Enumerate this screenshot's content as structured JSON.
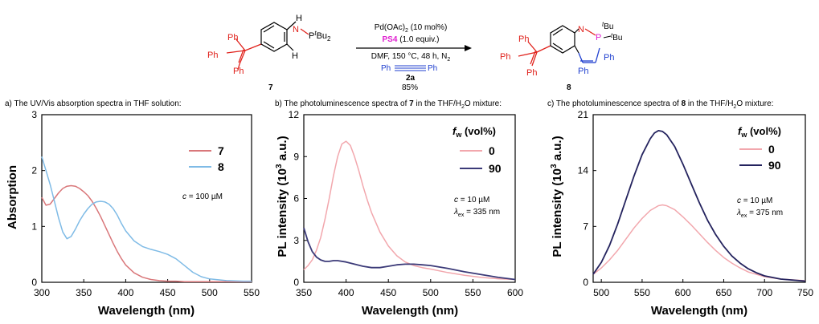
{
  "scheme": {
    "reactant_label": "7",
    "product_label": "8",
    "reactant_atoms": {
      "ph": "Ph",
      "nh": "N",
      "h": "H",
      "ptbu2": "P",
      "tbu_sup": "t",
      "bu2": "Bu",
      "sub2": "2",
      "h_ring": "H"
    },
    "product_atoms": {
      "ph": "Ph",
      "n": "N",
      "p": "P",
      "tbu_sup": "t",
      "bu": "Bu"
    },
    "cond_catalyst": "Pd(OAc)",
    "cond_catalyst_sub": "2",
    "cond_catalyst_rest": " (10 mol%)",
    "cond_ps4": "PS4",
    "cond_ps4_rest": " (1.0 equiv.)",
    "cond_solvent": "DMF, 150 °C, 48 h, N",
    "cond_solvent_sub": "2",
    "alkyne_ph": "Ph",
    "reagent_label": "2a",
    "yield": "85%"
  },
  "chart_data": [
    {
      "type": "line",
      "caption": "a) The UV/Vis absorption spectra in THF solution:",
      "xlabel": "Wavelength (nm)",
      "ylabel": "Absorption",
      "xlim": [
        300,
        550
      ],
      "ylim": [
        0,
        3
      ],
      "xticks": [
        300,
        350,
        400,
        450,
        500,
        550
      ],
      "yticks": [
        0,
        1,
        2,
        3
      ],
      "legend_position": "top-right",
      "annotation": {
        "italic": "c",
        "rest": " = 100 µM"
      },
      "series": [
        {
          "name": "7",
          "color": "#d9777a",
          "x": [
            300,
            305,
            310,
            315,
            320,
            325,
            330,
            335,
            340,
            345,
            350,
            355,
            360,
            365,
            370,
            375,
            380,
            385,
            390,
            395,
            400,
            410,
            420,
            430,
            440,
            450,
            460,
            470,
            480,
            500,
            520,
            550
          ],
          "y": [
            1.52,
            1.38,
            1.4,
            1.5,
            1.6,
            1.68,
            1.72,
            1.73,
            1.72,
            1.68,
            1.62,
            1.55,
            1.45,
            1.32,
            1.18,
            1.02,
            0.86,
            0.7,
            0.55,
            0.42,
            0.31,
            0.17,
            0.09,
            0.05,
            0.03,
            0.02,
            0.02,
            0.01,
            0.01,
            0.01,
            0.01,
            0.01
          ]
        },
        {
          "name": "8",
          "color": "#7fbbe6",
          "x": [
            300,
            305,
            310,
            315,
            320,
            325,
            330,
            335,
            340,
            345,
            350,
            355,
            360,
            365,
            370,
            375,
            380,
            385,
            390,
            395,
            400,
            410,
            420,
            430,
            440,
            450,
            460,
            470,
            480,
            490,
            500,
            520,
            540,
            550
          ],
          "y": [
            2.25,
            2.0,
            1.75,
            1.45,
            1.15,
            0.9,
            0.78,
            0.82,
            0.95,
            1.1,
            1.22,
            1.32,
            1.4,
            1.44,
            1.45,
            1.44,
            1.4,
            1.32,
            1.2,
            1.05,
            0.92,
            0.74,
            0.64,
            0.59,
            0.55,
            0.5,
            0.42,
            0.3,
            0.18,
            0.1,
            0.06,
            0.03,
            0.02,
            0.02
          ]
        }
      ]
    },
    {
      "type": "line",
      "caption_pre": "b) The photoluminescence spectra of ",
      "caption_bold": "7",
      "caption_post": " in the THF/H",
      "caption_sub": "2",
      "caption_end": "O mixture:",
      "xlabel": "Wavelength (nm)",
      "ylabel": "PL intensity (10",
      "ylabel_sup": "3",
      "ylabel_end": " a.u.)",
      "xlim": [
        350,
        600
      ],
      "ylim": [
        0,
        12
      ],
      "xticks": [
        350,
        400,
        450,
        500,
        550,
        600
      ],
      "yticks": [
        0,
        3,
        6,
        9,
        12
      ],
      "legend_title": "f",
      "legend_title_sub": "w",
      "legend_title_end": " (vol%)",
      "legend_position": "top-right",
      "annotation": {
        "italic": "c",
        "rest": " = 10 µM",
        "lambda": "λ",
        "lambda_sub": "ex",
        "lambda_rest": " = 335 nm"
      },
      "series": [
        {
          "name": "0",
          "color": "#f2a7ad",
          "x": [
            350,
            355,
            360,
            365,
            370,
            375,
            380,
            385,
            390,
            395,
            400,
            405,
            410,
            415,
            420,
            425,
            430,
            440,
            450,
            460,
            470,
            480,
            490,
            500,
            520,
            540,
            560,
            580,
            600
          ],
          "y": [
            0.9,
            1.2,
            1.6,
            2.3,
            3.2,
            4.5,
            6.0,
            7.6,
            9.0,
            9.9,
            10.1,
            9.8,
            9.0,
            8.0,
            6.9,
            5.9,
            5.0,
            3.6,
            2.6,
            1.9,
            1.45,
            1.2,
            1.05,
            0.95,
            0.7,
            0.5,
            0.35,
            0.25,
            0.2
          ]
        },
        {
          "name": "90",
          "color": "#3b3a78",
          "x": [
            350,
            355,
            360,
            365,
            370,
            375,
            380,
            385,
            390,
            400,
            410,
            420,
            430,
            440,
            450,
            460,
            470,
            480,
            490,
            500,
            520,
            540,
            560,
            580,
            600
          ],
          "y": [
            3.9,
            2.9,
            2.2,
            1.8,
            1.6,
            1.5,
            1.5,
            1.55,
            1.55,
            1.45,
            1.3,
            1.15,
            1.05,
            1.05,
            1.15,
            1.25,
            1.3,
            1.3,
            1.25,
            1.2,
            1.0,
            0.75,
            0.55,
            0.35,
            0.2
          ]
        }
      ]
    },
    {
      "type": "line",
      "caption_pre": "c) The photoluminescence spectra of ",
      "caption_bold": "8",
      "caption_post": " in the THF/H",
      "caption_sub": "2",
      "caption_end": "O mixture:",
      "xlabel": "Wavelength (nm)",
      "ylabel": "PL intensity (10",
      "ylabel_sup": "3",
      "ylabel_end": " a.u.)",
      "xlim": [
        490,
        750
      ],
      "ylim": [
        0,
        21
      ],
      "xticks": [
        500,
        550,
        600,
        650,
        700,
        750
      ],
      "yticks": [
        0,
        7,
        14,
        21
      ],
      "legend_title": "f",
      "legend_title_sub": "w",
      "legend_title_end": " (vol%)",
      "legend_position": "top-right",
      "annotation": {
        "italic": "c",
        "rest": " = 10 µM",
        "lambda": "λ",
        "lambda_sub": "ex",
        "lambda_rest": " = 375 nm"
      },
      "series": [
        {
          "name": "0",
          "color": "#f2a7ad",
          "x": [
            490,
            500,
            510,
            520,
            530,
            540,
            550,
            560,
            570,
            575,
            580,
            590,
            600,
            610,
            620,
            630,
            640,
            650,
            660,
            670,
            680,
            690,
            700,
            720,
            750
          ],
          "y": [
            1.0,
            1.8,
            2.8,
            4.0,
            5.4,
            6.8,
            8.0,
            9.0,
            9.6,
            9.7,
            9.6,
            9.1,
            8.2,
            7.2,
            6.1,
            5.0,
            4.0,
            3.1,
            2.4,
            1.8,
            1.3,
            1.0,
            0.7,
            0.4,
            0.2
          ]
        },
        {
          "name": "90",
          "color": "#24235e",
          "x": [
            490,
            500,
            510,
            520,
            530,
            540,
            550,
            560,
            565,
            570,
            575,
            580,
            590,
            600,
            610,
            620,
            630,
            640,
            650,
            660,
            670,
            680,
            690,
            700,
            720,
            750
          ],
          "y": [
            1.0,
            2.5,
            4.6,
            7.3,
            10.3,
            13.3,
            16.0,
            18.0,
            18.7,
            19.0,
            18.9,
            18.5,
            17.0,
            14.8,
            12.4,
            10.0,
            7.8,
            6.0,
            4.5,
            3.3,
            2.4,
            1.7,
            1.2,
            0.8,
            0.4,
            0.15
          ]
        }
      ]
    }
  ]
}
